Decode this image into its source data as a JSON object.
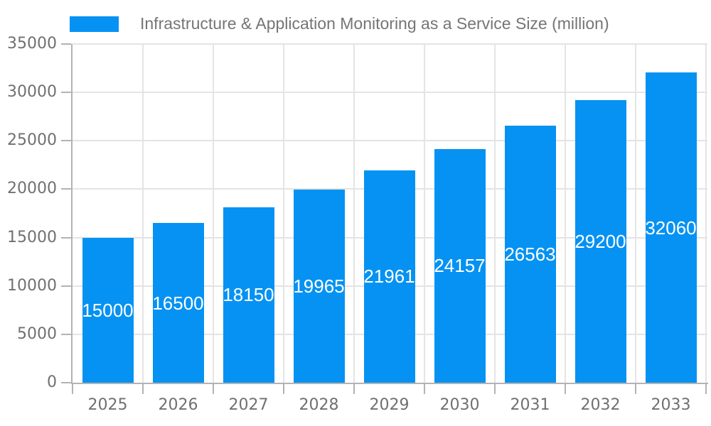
{
  "chart_data": {
    "type": "bar",
    "title": "Infrastructure & Application Monitoring as a Service Size (million)",
    "legend": {
      "label": "Infrastructure & Application Monitoring as a Service Size (million)",
      "position": "top"
    },
    "categories": [
      "2025",
      "2026",
      "2027",
      "2028",
      "2029",
      "2030",
      "2031",
      "2032",
      "2033"
    ],
    "values": [
      15000,
      16500,
      18150,
      19965,
      21961,
      24157,
      26563,
      29200,
      32060
    ],
    "value_labels": [
      "15000",
      "16500",
      "18150",
      "19965",
      "21961",
      "24157",
      "26563",
      "29200",
      "32060"
    ],
    "xlabel": "",
    "ylabel": "",
    "ylim": [
      0,
      35000
    ],
    "ytick_step": 5000,
    "ytick_labels": [
      "0",
      "5000",
      "10000",
      "15000",
      "20000",
      "25000",
      "30000",
      "35000"
    ],
    "grid": true,
    "colors": {
      "bar": "#0692f2",
      "bar_label_text": "#ffffff",
      "grid_line": "#e4e4e4",
      "axis_line": "#b3b3b3",
      "text": "#707070",
      "background": "#ffffff"
    }
  }
}
